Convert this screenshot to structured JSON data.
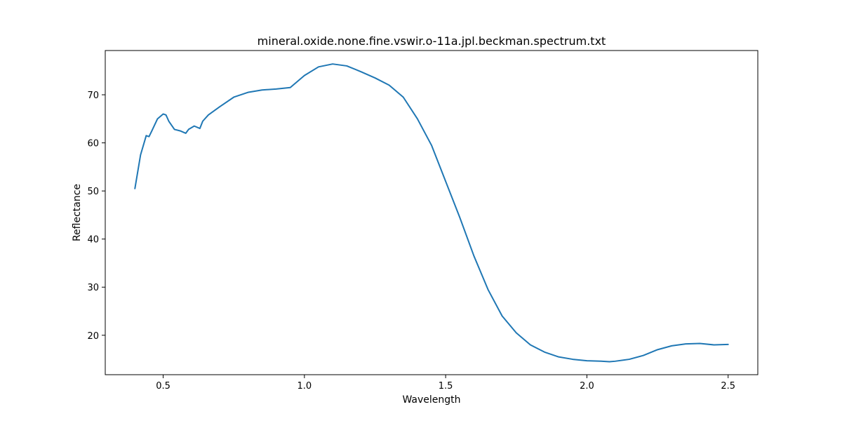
{
  "chart_data": {
    "type": "line",
    "title": "mineral.oxide.none.fine.vswir.o-11a.jpl.beckman.spectrum.txt",
    "xlabel": "Wavelength",
    "ylabel": "Reflectance",
    "xlim": [
      0.295,
      2.605
    ],
    "ylim": [
      11.8,
      79.2
    ],
    "xticks": [
      0.5,
      1.0,
      1.5,
      2.0,
      2.5
    ],
    "xtick_labels": [
      "0.5",
      "1.0",
      "1.5",
      "2.0",
      "2.5"
    ],
    "yticks": [
      20,
      30,
      40,
      50,
      60,
      70
    ],
    "ytick_labels": [
      "20",
      "30",
      "40",
      "50",
      "60",
      "70"
    ],
    "grid": false,
    "line_color": "#1f77b4",
    "series": [
      {
        "x": [
          0.4,
          0.42,
          0.44,
          0.45,
          0.46,
          0.48,
          0.5,
          0.51,
          0.52,
          0.54,
          0.56,
          0.58,
          0.59,
          0.61,
          0.63,
          0.64,
          0.66,
          0.7,
          0.75,
          0.8,
          0.85,
          0.9,
          0.95,
          1.0,
          1.05,
          1.1,
          1.15,
          1.2,
          1.25,
          1.3,
          1.35,
          1.4,
          1.45,
          1.5,
          1.55,
          1.6,
          1.65,
          1.7,
          1.75,
          1.8,
          1.85,
          1.9,
          1.95,
          2.0,
          2.05,
          2.08,
          2.1,
          2.15,
          2.2,
          2.25,
          2.3,
          2.35,
          2.4,
          2.45,
          2.5
        ],
        "y": [
          50.5,
          57.5,
          61.5,
          61.3,
          62.5,
          65.0,
          66.0,
          65.8,
          64.5,
          62.8,
          62.5,
          62.0,
          62.8,
          63.5,
          63.0,
          64.5,
          65.8,
          67.5,
          69.5,
          70.5,
          71.0,
          71.2,
          71.5,
          74.0,
          75.8,
          76.4,
          76.0,
          74.8,
          73.5,
          72.0,
          69.5,
          65.0,
          59.5,
          52.0,
          44.5,
          36.5,
          29.5,
          24.0,
          20.5,
          18.0,
          16.5,
          15.5,
          15.0,
          14.7,
          14.6,
          14.5,
          14.6,
          15.0,
          15.8,
          17.0,
          17.8,
          18.2,
          18.3,
          18.0,
          18.1
        ]
      }
    ]
  }
}
